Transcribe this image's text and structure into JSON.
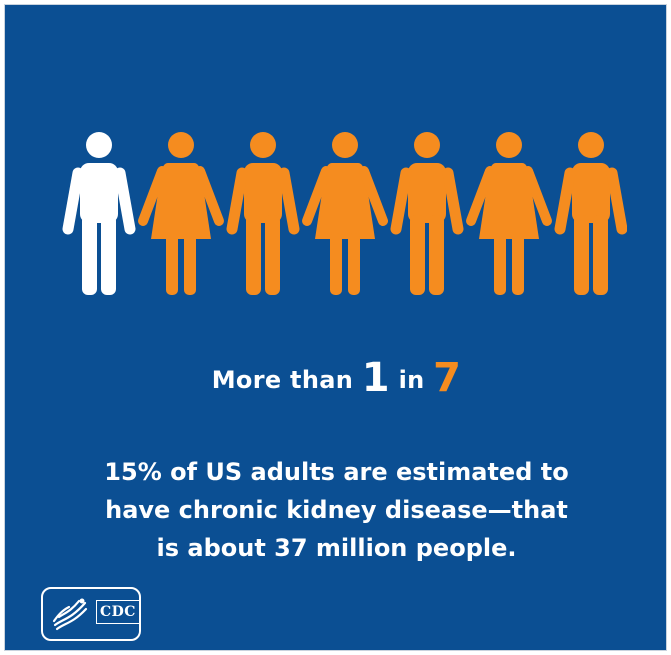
{
  "colors": {
    "background": "#0b4f93",
    "highlight": "#f58c1f",
    "white": "#ffffff"
  },
  "people": [
    {
      "figure": "man-figure-icon",
      "color": "white"
    },
    {
      "figure": "woman-figure-icon",
      "color": "orange"
    },
    {
      "figure": "man-figure-icon",
      "color": "orange"
    },
    {
      "figure": "woman-figure-icon",
      "color": "orange"
    },
    {
      "figure": "man-figure-icon",
      "color": "orange"
    },
    {
      "figure": "woman-figure-icon",
      "color": "orange"
    },
    {
      "figure": "man-figure-icon",
      "color": "orange"
    }
  ],
  "headline": {
    "prefix": "More than",
    "numerator": "1",
    "middle": "in",
    "denominator": "7"
  },
  "body": {
    "lines": [
      "15% of US adults are estimated to",
      "have chronic kidney disease—that",
      "is about 37 million people."
    ]
  },
  "logo": {
    "text": "CDC",
    "icon": "hhs-eagle-icon"
  }
}
